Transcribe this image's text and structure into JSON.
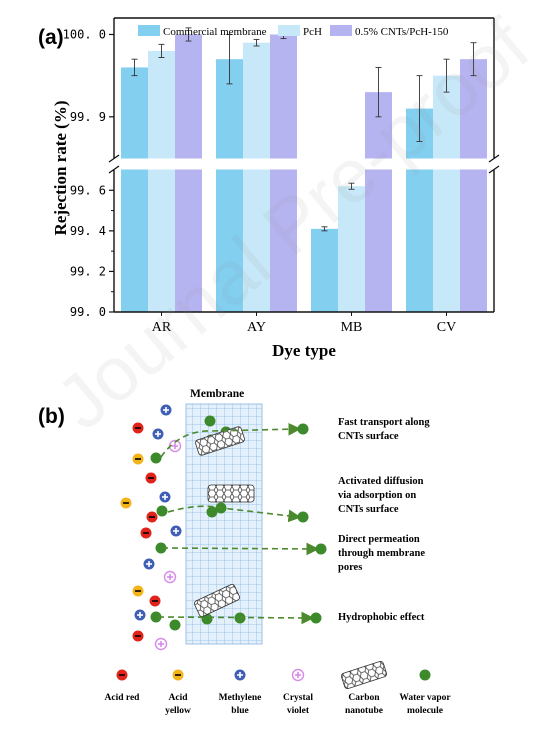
{
  "panel_a": {
    "letter": "(a)",
    "chart_data": {
      "type": "bar",
      "categories": [
        "AR",
        "AY",
        "MB",
        "CV"
      ],
      "xlabel": "Dye type",
      "ylabel": "Rejection rate (%)",
      "axis_break": {
        "lower_range": [
          99.0,
          99.7
        ],
        "upper_range": [
          99.85,
          100.02
        ]
      },
      "yticks_lower": [
        "99. 0",
        "99. 2",
        "99. 4",
        "99. 6"
      ],
      "yticks_upper": [
        "99. 9",
        "100. 0"
      ],
      "legend_position": "top",
      "series": [
        {
          "name": "Commercial membrane",
          "color": "#82cff0",
          "values": [
            99.96,
            99.97,
            99.41,
            99.91
          ],
          "errors": [
            0.01,
            0.03,
            0.01,
            0.04
          ]
        },
        {
          "name": "PcH",
          "color": "#c7e8f8",
          "values": [
            99.98,
            99.99,
            99.62,
            99.95
          ],
          "errors": [
            0.008,
            0.004,
            0.015,
            0.02
          ]
        },
        {
          "name": "0.5% CNTs/PcH-150",
          "color": "#b6b4f0",
          "values": [
            100.0,
            100.0,
            99.93,
            99.97
          ],
          "errors": [
            0.008,
            0.005,
            0.03,
            0.02
          ]
        }
      ]
    }
  },
  "panel_b": {
    "letter": "(b)",
    "membrane_label": "Membrane",
    "mechanisms": [
      {
        "line1": "Fast transport along",
        "line2": "CNTs surface",
        "line3": ""
      },
      {
        "line1": "Activated diffusion",
        "line2": "via adsorption on",
        "line3": "CNTs surface"
      },
      {
        "line1": "Direct permeation",
        "line2": "through membrane",
        "line3": "pores"
      },
      {
        "line1": "Hydrophobic effect",
        "line2": "",
        "line3": ""
      }
    ],
    "key": [
      {
        "icon": "acid-red",
        "line1": "Acid red",
        "line2": ""
      },
      {
        "icon": "acid-yellow",
        "line1": "Acid",
        "line2": "yellow"
      },
      {
        "icon": "methylene-blue",
        "line1": "Methylene",
        "line2": "blue"
      },
      {
        "icon": "crystal-violet",
        "line1": "Crystal",
        "line2": "violet"
      },
      {
        "icon": "carbon-nanotube",
        "line1": "Carbon",
        "line2": "nanotube"
      },
      {
        "icon": "water-vapor",
        "line1": "Water vapor",
        "line2": "molecule"
      }
    ],
    "colors": {
      "acid_red": "#e0241c",
      "acid_yellow": "#f2b418",
      "methylene_blue": "#3e5fb5",
      "crystal_violet": "#d88ae8",
      "water_vapor": "#3d8a2c",
      "arrow": "#4d8a2e"
    }
  }
}
